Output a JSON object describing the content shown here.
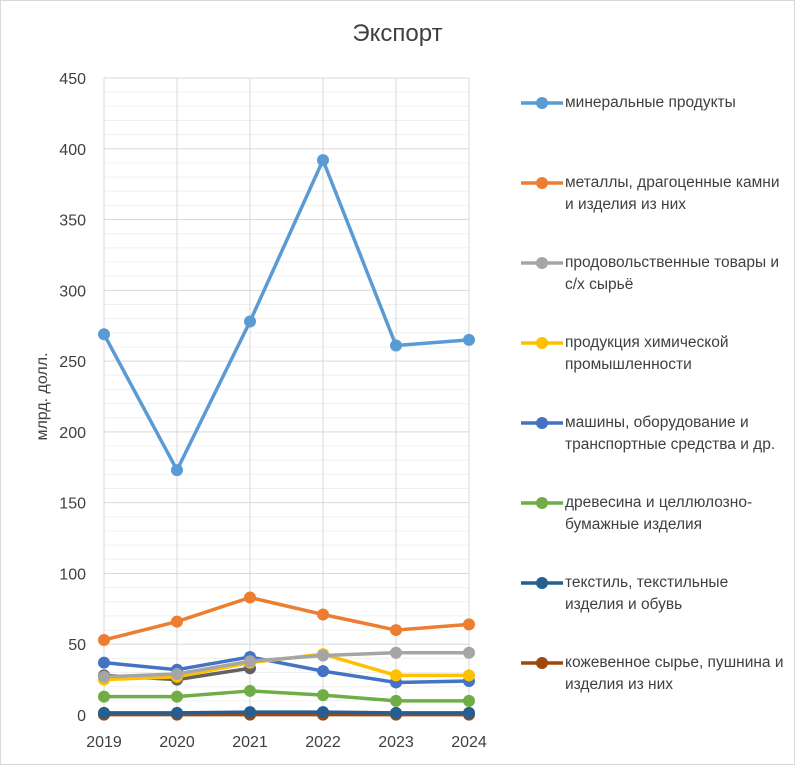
{
  "chart_data": {
    "type": "line",
    "title": "Экспорт",
    "xlabel": "",
    "ylabel": "млрд. долл.",
    "categories": [
      "2019",
      "2020",
      "2021",
      "2022",
      "2023",
      "2024"
    ],
    "ylim": [
      0,
      450
    ],
    "yticks": [
      0,
      50,
      100,
      150,
      200,
      250,
      300,
      350,
      400,
      450
    ],
    "grid": true,
    "legend_position": "right",
    "series": [
      {
        "name": "минеральные продукты",
        "color": "#5b9bd5",
        "values": [
          269,
          173,
          278,
          392,
          261,
          265
        ]
      },
      {
        "name": "металлы, драгоценные камни и изделия из них",
        "color": "#ed7d31",
        "values": [
          53,
          66,
          83,
          71,
          60,
          64
        ]
      },
      {
        "name": "продовольственные товары и с/х сырьё",
        "color": "#a5a5a5",
        "values": [
          27,
          29,
          38,
          42,
          44,
          44
        ]
      },
      {
        "name": "продукция химической промышленности",
        "color": "#ffc000",
        "values": [
          25,
          27,
          37,
          43,
          28,
          28
        ]
      },
      {
        "name": "машины, оборудование и транспортные средства и др.",
        "color": "#4472c4",
        "values": [
          37,
          32,
          41,
          31,
          23,
          24
        ]
      },
      {
        "name": "древесина и целлюлозно-бумажные изделия",
        "color": "#70ad47",
        "values": [
          13,
          13,
          17,
          14,
          10,
          10
        ]
      },
      {
        "name": "текстиль, текстильные изделия и обувь",
        "color": "#255e91",
        "values": [
          1.5,
          1.5,
          2,
          2,
          1.5,
          1.5
        ]
      },
      {
        "name": "кожевенное сырье, пушнина и изделия из них",
        "color": "#9e480e",
        "values": [
          0.3,
          0.3,
          0.3,
          0.3,
          0.3,
          0.3
        ]
      },
      {
        "name": "",
        "color": "#636363",
        "values": [
          28,
          25,
          33,
          null,
          null,
          null
        ]
      }
    ]
  }
}
